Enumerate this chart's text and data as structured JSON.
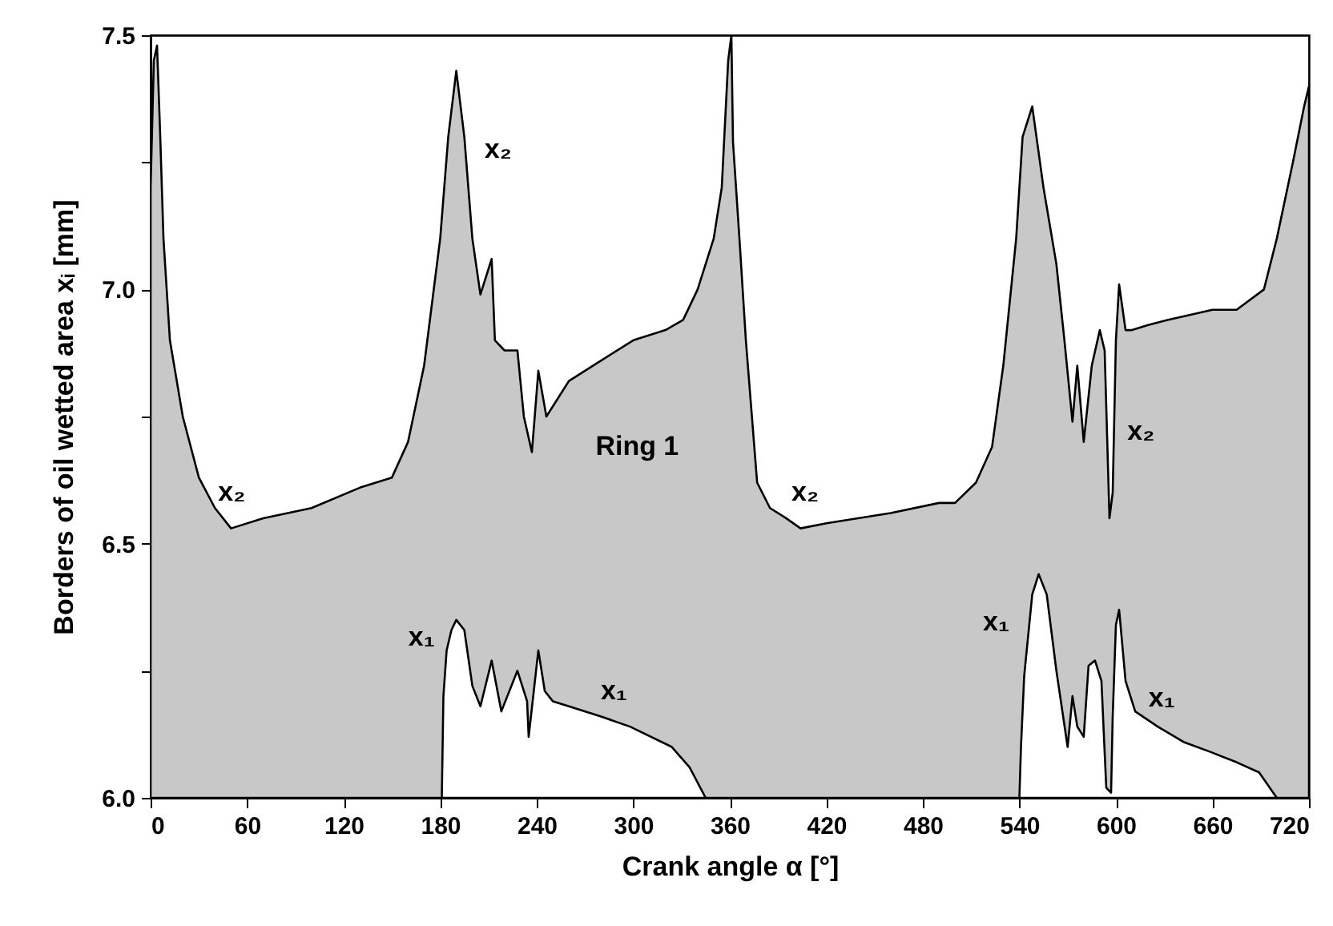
{
  "chart_data": {
    "type": "area",
    "xlabel": "Crank angle α [°]",
    "ylabel": "Borders of oil wetted area xᵢ [mm]",
    "xlim": [
      0,
      720
    ],
    "xticks": [
      0,
      60,
      120,
      180,
      240,
      300,
      360,
      420,
      480,
      540,
      600,
      660,
      720
    ],
    "ylim": [
      6.0,
      7.5
    ],
    "yticks": [
      {
        "value": 6,
        "label": "6.0"
      },
      {
        "value": 6.25,
        "label": null
      },
      6.5,
      {
        "value": 6.75,
        "label": null
      },
      {
        "value": 7,
        "label": "7.0"
      },
      {
        "value": 7.25,
        "label": null
      },
      7.5
    ],
    "series": [
      {
        "color": "#c8c8c8",
        "x": [
          0,
          2,
          4,
          6,
          8,
          12,
          20,
          30,
          40,
          50,
          70,
          100,
          130,
          150,
          160,
          170,
          180,
          185,
          190,
          195,
          200,
          205,
          212,
          214,
          220,
          228,
          232,
          237,
          241,
          246,
          252,
          260,
          280,
          300,
          320,
          331,
          340,
          350,
          355,
          359,
          361,
          362,
          366,
          370,
          377,
          385,
          395,
          404,
          420,
          460,
          490,
          500,
          513,
          523,
          530,
          538,
          542,
          548,
          555,
          563,
          568,
          573,
          576,
          580,
          585,
          590,
          593,
          596,
          598,
          600,
          602,
          606,
          610,
          620,
          632,
          660,
          675,
          692,
          700,
          710,
          717,
          720
        ],
        "values": [
          7.2,
          7.45,
          7.48,
          7.3,
          7.1,
          6.9,
          6.75,
          6.63,
          6.57,
          6.53,
          6.55,
          6.57,
          6.61,
          6.63,
          6.7,
          6.85,
          7.1,
          7.3,
          7.43,
          7.3,
          7.1,
          6.99,
          7.06,
          6.9,
          6.88,
          6.88,
          6.75,
          6.68,
          6.84,
          6.75,
          6.78,
          6.82,
          6.86,
          6.9,
          6.92,
          6.94,
          7.0,
          7.1,
          7.2,
          7.45,
          7.5,
          7.29,
          7.1,
          6.9,
          6.62,
          6.57,
          6.55,
          6.53,
          6.54,
          6.56,
          6.58,
          6.58,
          6.62,
          6.69,
          6.85,
          7.1,
          7.3,
          7.36,
          7.2,
          7.05,
          6.9,
          6.74,
          6.85,
          6.7,
          6.85,
          6.92,
          6.88,
          6.55,
          6.6,
          6.9,
          7.01,
          6.92,
          6.92,
          6.93,
          6.94,
          6.96,
          6.96,
          7.0,
          7.1,
          7.25,
          7.36,
          7.4
        ]
      },
      {
        "color": "#ffffff",
        "x": [
          181,
          182,
          184,
          187,
          190,
          195,
          200,
          205,
          212,
          218,
          228,
          234,
          235,
          241,
          245,
          250,
          260,
          280,
          298,
          324,
          335,
          345
        ],
        "values": [
          6.0,
          6.2,
          6.29,
          6.33,
          6.35,
          6.33,
          6.22,
          6.18,
          6.27,
          6.17,
          6.25,
          6.19,
          6.12,
          6.29,
          6.21,
          6.19,
          6.18,
          6.16,
          6.14,
          6.1,
          6.06,
          6.0
        ]
      },
      {
        "color": "#ffffff",
        "x": [
          540,
          541,
          543,
          548,
          552,
          557,
          563,
          570,
          573,
          576,
          580,
          583,
          587,
          591,
          594,
          597,
          598,
          600,
          602,
          606,
          612,
          626,
          642,
          659,
          675,
          689,
          700
        ],
        "values": [
          6.0,
          6.1,
          6.24,
          6.4,
          6.44,
          6.4,
          6.25,
          6.1,
          6.2,
          6.14,
          6.12,
          6.26,
          6.27,
          6.23,
          6.02,
          6.01,
          6.16,
          6.34,
          6.37,
          6.23,
          6.17,
          6.14,
          6.11,
          6.09,
          6.07,
          6.05,
          6.0
        ]
      }
    ],
    "annotations": [
      "Ring 1",
      "x₂",
      "x₂",
      "x₂",
      "x₂",
      "x₁",
      "x₁",
      "x₁",
      "x₁"
    ]
  }
}
